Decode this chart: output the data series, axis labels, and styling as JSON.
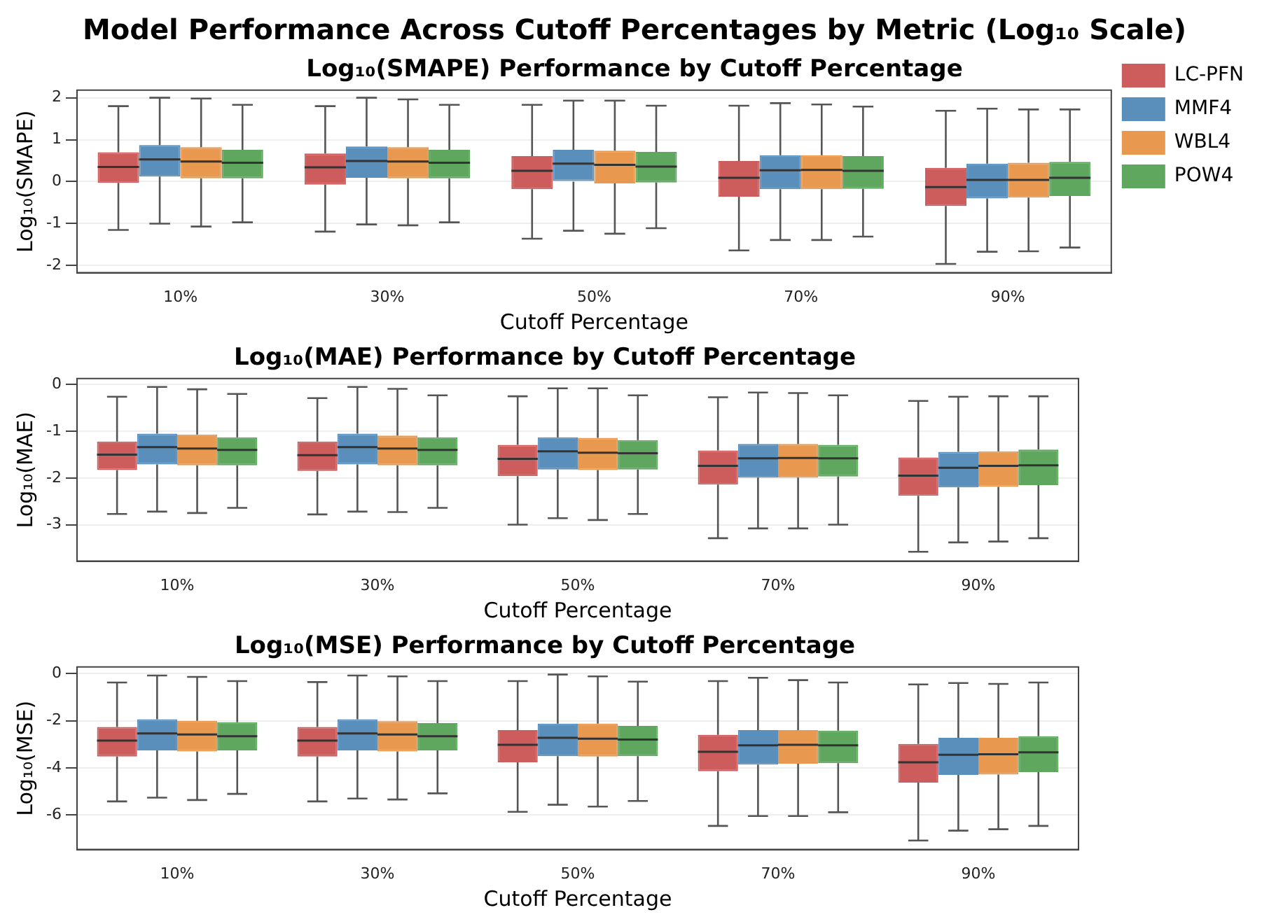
{
  "chart_data": [
    {
      "type": "other",
      "title": "Model Performance Across Cutoff Percentages by Metric (Log₁₀ Scale)"
    },
    {
      "type": "box",
      "title": "Log₁₀(SMAPE) Performance by Cutoff Percentage",
      "xlabel": "Cutoff Percentage",
      "ylabel": "Log₁₀(SMAPE)",
      "categories": [
        "10%",
        "30%",
        "50%",
        "70%",
        "90%"
      ],
      "ylim": [
        -2.17,
        2.18
      ],
      "yticks": [
        -2,
        -1,
        0,
        1,
        2
      ],
      "grid": "y",
      "legend": "right",
      "series": [
        {
          "name": "LC-PFN",
          "color": "#cd5c5c",
          "boxes": [
            {
              "low": -1.15,
              "q1": -0.03,
              "median": 0.35,
              "q3": 0.7,
              "high": 1.8
            },
            {
              "low": -1.19,
              "q1": -0.07,
              "median": 0.34,
              "q3": 0.67,
              "high": 1.8
            },
            {
              "low": -1.36,
              "q1": -0.18,
              "median": 0.26,
              "q3": 0.61,
              "high": 1.83
            },
            {
              "low": -1.64,
              "q1": -0.36,
              "median": 0.09,
              "q3": 0.49,
              "high": 1.81
            },
            {
              "low": -1.96,
              "q1": -0.58,
              "median": -0.13,
              "q3": 0.33,
              "high": 1.69
            }
          ]
        },
        {
          "name": "MMF4",
          "color": "#5a8fbb",
          "boxes": [
            {
              "low": -1.0,
              "q1": 0.12,
              "median": 0.53,
              "q3": 0.87,
              "high": 2.0
            },
            {
              "low": -1.02,
              "q1": 0.09,
              "median": 0.49,
              "q3": 0.84,
              "high": 2.0
            },
            {
              "low": -1.17,
              "q1": 0.0,
              "median": 0.43,
              "q3": 0.76,
              "high": 1.93
            },
            {
              "low": -1.39,
              "q1": -0.18,
              "median": 0.27,
              "q3": 0.63,
              "high": 1.87
            },
            {
              "low": -1.67,
              "q1": -0.4,
              "median": 0.04,
              "q3": 0.43,
              "high": 1.74
            }
          ]
        },
        {
          "name": "WBL4",
          "color": "#e8994f",
          "boxes": [
            {
              "low": -1.07,
              "q1": 0.08,
              "median": 0.48,
              "q3": 0.82,
              "high": 1.98
            },
            {
              "low": -1.04,
              "q1": 0.08,
              "median": 0.48,
              "q3": 0.82,
              "high": 1.96
            },
            {
              "low": -1.24,
              "q1": -0.04,
              "median": 0.4,
              "q3": 0.74,
              "high": 1.93
            },
            {
              "low": -1.39,
              "q1": -0.18,
              "median": 0.28,
              "q3": 0.63,
              "high": 1.84
            },
            {
              "low": -1.66,
              "q1": -0.38,
              "median": 0.04,
              "q3": 0.45,
              "high": 1.72
            }
          ]
        },
        {
          "name": "POW4",
          "color": "#5fa75f",
          "boxes": [
            {
              "low": -0.97,
              "q1": 0.08,
              "median": 0.45,
              "q3": 0.76,
              "high": 1.83
            },
            {
              "low": -0.97,
              "q1": 0.08,
              "median": 0.45,
              "q3": 0.76,
              "high": 1.83
            },
            {
              "low": -1.11,
              "q1": -0.02,
              "median": 0.36,
              "q3": 0.71,
              "high": 1.81
            },
            {
              "low": -1.31,
              "q1": -0.17,
              "median": 0.26,
              "q3": 0.61,
              "high": 1.79
            },
            {
              "low": -1.57,
              "q1": -0.34,
              "median": 0.09,
              "q3": 0.47,
              "high": 1.72
            }
          ]
        }
      ]
    },
    {
      "type": "box",
      "title": "Log₁₀(MAE) Performance by Cutoff Percentage",
      "xlabel": "Cutoff Percentage",
      "ylabel": "Log₁₀(MAE)",
      "categories": [
        "10%",
        "30%",
        "50%",
        "70%",
        "90%"
      ],
      "ylim": [
        -3.78,
        0.13
      ],
      "yticks": [
        -3,
        -2,
        -1,
        0
      ],
      "grid": "y",
      "series": [
        {
          "color": "#cd5c5c",
          "boxes": [
            {
              "low": -2.77,
              "q1": -1.83,
              "median": -1.5,
              "q3": -1.22,
              "high": -0.26
            },
            {
              "low": -2.78,
              "q1": -1.85,
              "median": -1.51,
              "q3": -1.22,
              "high": -0.29
            },
            {
              "low": -3.0,
              "q1": -1.96,
              "median": -1.59,
              "q3": -1.29,
              "high": -0.25
            },
            {
              "low": -3.29,
              "q1": -2.14,
              "median": -1.74,
              "q3": -1.41,
              "high": -0.27
            },
            {
              "low": -3.58,
              "q1": -2.38,
              "median": -1.95,
              "q3": -1.56,
              "high": -0.35
            }
          ]
        },
        {
          "color": "#5a8fbb",
          "boxes": [
            {
              "low": -2.72,
              "q1": -1.71,
              "median": -1.34,
              "q3": -1.05,
              "high": -0.05
            },
            {
              "low": -2.72,
              "q1": -1.71,
              "median": -1.34,
              "q3": -1.05,
              "high": -0.05
            },
            {
              "low": -2.86,
              "q1": -1.82,
              "median": -1.43,
              "q3": -1.13,
              "high": -0.08
            },
            {
              "low": -3.08,
              "q1": -1.99,
              "median": -1.58,
              "q3": -1.27,
              "high": -0.17
            },
            {
              "low": -3.38,
              "q1": -2.2,
              "median": -1.78,
              "q3": -1.44,
              "high": -0.26
            }
          ]
        },
        {
          "color": "#e8994f",
          "boxes": [
            {
              "low": -2.75,
              "q1": -1.73,
              "median": -1.37,
              "q3": -1.07,
              "high": -0.1
            },
            {
              "low": -2.73,
              "q1": -1.73,
              "median": -1.37,
              "q3": -1.09,
              "high": -0.09
            },
            {
              "low": -2.9,
              "q1": -1.83,
              "median": -1.46,
              "q3": -1.14,
              "high": -0.08
            },
            {
              "low": -3.08,
              "q1": -1.99,
              "median": -1.57,
              "q3": -1.27,
              "high": -0.18
            },
            {
              "low": -3.36,
              "q1": -2.19,
              "median": -1.74,
              "q3": -1.43,
              "high": -0.25
            }
          ]
        },
        {
          "color": "#5fa75f",
          "boxes": [
            {
              "low": -2.64,
              "q1": -1.73,
              "median": -1.4,
              "q3": -1.13,
              "high": -0.2
            },
            {
              "low": -2.64,
              "q1": -1.73,
              "median": -1.4,
              "q3": -1.13,
              "high": -0.23
            },
            {
              "low": -2.77,
              "q1": -1.82,
              "median": -1.47,
              "q3": -1.19,
              "high": -0.23
            },
            {
              "low": -3.0,
              "q1": -1.97,
              "median": -1.58,
              "q3": -1.29,
              "high": -0.23
            },
            {
              "low": -3.29,
              "q1": -2.15,
              "median": -1.73,
              "q3": -1.39,
              "high": -0.25
            }
          ]
        }
      ]
    },
    {
      "type": "box",
      "title": "Log₁₀(MSE) Performance by Cutoff Percentage",
      "xlabel": "Cutoff Percentage",
      "ylabel": "Log₁₀(MSE)",
      "categories": [
        "10%",
        "30%",
        "50%",
        "70%",
        "90%"
      ],
      "ylim": [
        -7.46,
        0.28
      ],
      "yticks": [
        -6,
        -4,
        -2,
        0
      ],
      "grid": "y",
      "series": [
        {
          "color": "#cd5c5c",
          "boxes": [
            {
              "low": -5.42,
              "q1": -3.52,
              "median": -2.84,
              "q3": -2.26,
              "high": -0.38
            },
            {
              "low": -5.42,
              "q1": -3.52,
              "median": -2.84,
              "q3": -2.26,
              "high": -0.36
            },
            {
              "low": -5.86,
              "q1": -3.76,
              "median": -3.02,
              "q3": -2.4,
              "high": -0.32
            },
            {
              "low": -6.46,
              "q1": -4.14,
              "median": -3.32,
              "q3": -2.6,
              "high": -0.32
            },
            {
              "low": -7.08,
              "q1": -4.62,
              "median": -3.76,
              "q3": -2.98,
              "high": -0.46
            }
          ]
        },
        {
          "color": "#5a8fbb",
          "boxes": [
            {
              "low": -5.26,
              "q1": -3.26,
              "median": -2.54,
              "q3": -1.94,
              "high": -0.08
            },
            {
              "low": -5.3,
              "q1": -3.26,
              "median": -2.54,
              "q3": -1.94,
              "high": -0.08
            },
            {
              "low": -5.56,
              "q1": -3.5,
              "median": -2.72,
              "q3": -2.12,
              "high": -0.04
            },
            {
              "low": -6.04,
              "q1": -3.86,
              "median": -3.04,
              "q3": -2.4,
              "high": -0.18
            },
            {
              "low": -6.66,
              "q1": -4.3,
              "median": -3.44,
              "q3": -2.72,
              "high": -0.4
            }
          ]
        },
        {
          "color": "#e8994f",
          "boxes": [
            {
              "low": -5.36,
              "q1": -3.3,
              "median": -2.58,
              "q3": -2.0,
              "high": -0.14
            },
            {
              "low": -5.34,
              "q1": -3.3,
              "median": -2.58,
              "q3": -2.02,
              "high": -0.12
            },
            {
              "low": -5.64,
              "q1": -3.52,
              "median": -2.76,
              "q3": -2.12,
              "high": -0.12
            },
            {
              "low": -6.04,
              "q1": -3.82,
              "median": -3.02,
              "q3": -2.4,
              "high": -0.28
            },
            {
              "low": -6.6,
              "q1": -4.28,
              "median": -3.42,
              "q3": -2.72,
              "high": -0.44
            }
          ]
        },
        {
          "color": "#5fa75f",
          "boxes": [
            {
              "low": -5.1,
              "q1": -3.26,
              "median": -2.66,
              "q3": -2.06,
              "high": -0.32
            },
            {
              "low": -5.08,
              "q1": -3.26,
              "median": -2.66,
              "q3": -2.1,
              "high": -0.32
            },
            {
              "low": -5.4,
              "q1": -3.5,
              "median": -2.8,
              "q3": -2.22,
              "high": -0.34
            },
            {
              "low": -5.88,
              "q1": -3.8,
              "median": -3.04,
              "q3": -2.42,
              "high": -0.38
            },
            {
              "low": -6.46,
              "q1": -4.18,
              "median": -3.34,
              "q3": -2.66,
              "high": -0.38
            }
          ]
        }
      ]
    }
  ]
}
